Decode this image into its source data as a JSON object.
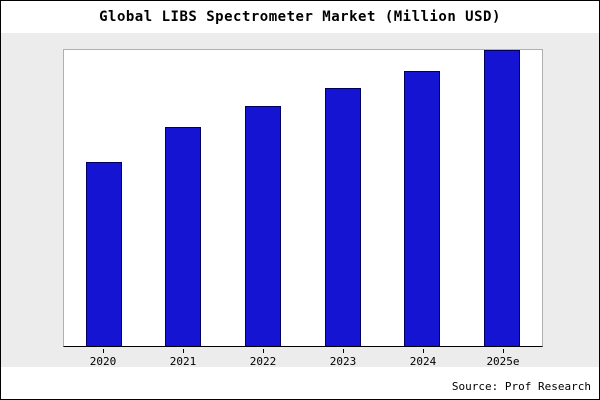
{
  "title": "Global LIBS Spectrometer Market (Million USD)",
  "source": "Source: Prof Research",
  "colors": {
    "bar_fill": "#1414d2",
    "bar_border": "#000060",
    "panel_background": "#ececec",
    "plot_background": "#ffffff"
  },
  "chart_data": {
    "type": "bar",
    "title": "Global LIBS Spectrometer Market (Million USD)",
    "categories": [
      "2020",
      "2021",
      "2022",
      "2023",
      "2024",
      "2025e"
    ],
    "values": [
      62,
      74,
      81,
      87,
      93,
      100
    ],
    "xlabel": "",
    "ylabel": "",
    "ylim": [
      0,
      100
    ],
    "grid": false,
    "legend": "none",
    "annotation": "Source: Prof Research"
  }
}
